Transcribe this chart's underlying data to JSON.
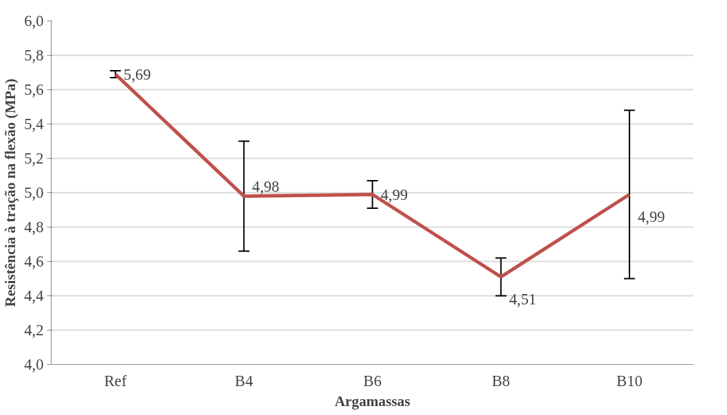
{
  "chart_data": {
    "type": "line",
    "xlabel": "Argamassas",
    "ylabel": "Resistência à tração na flexão (MPa)",
    "categories": [
      "Ref",
      "B4",
      "B6",
      "B8",
      "B10"
    ],
    "series": [
      {
        "color": "#c0504d",
        "values": [
          5.69,
          4.98,
          4.99,
          4.51,
          4.99
        ],
        "errors": [
          0.02,
          0.32,
          0.08,
          0.11,
          0.49
        ]
      }
    ],
    "value_labels": [
      "5,69",
      "4,98",
      "4,99",
      "4,51",
      "4,99"
    ],
    "ylim": [
      4.0,
      6.0
    ],
    "yticks": [
      {
        "value": 4.0,
        "label": "4,0"
      },
      {
        "value": 4.2,
        "label": "4,2"
      },
      {
        "value": 4.4,
        "label": "4,4"
      },
      {
        "value": 4.6,
        "label": "4,6"
      },
      {
        "value": 4.8,
        "label": "4,8"
      },
      {
        "value": 5.0,
        "label": "5,0"
      },
      {
        "value": 5.2,
        "label": "5,2"
      },
      {
        "value": 5.4,
        "label": "5,4"
      },
      {
        "value": 5.6,
        "label": "5,6"
      },
      {
        "value": 5.8,
        "label": "5,8"
      },
      {
        "value": 6.0,
        "label": "6,0"
      }
    ],
    "grid": "y",
    "marker": "none",
    "line_style": "solid"
  }
}
